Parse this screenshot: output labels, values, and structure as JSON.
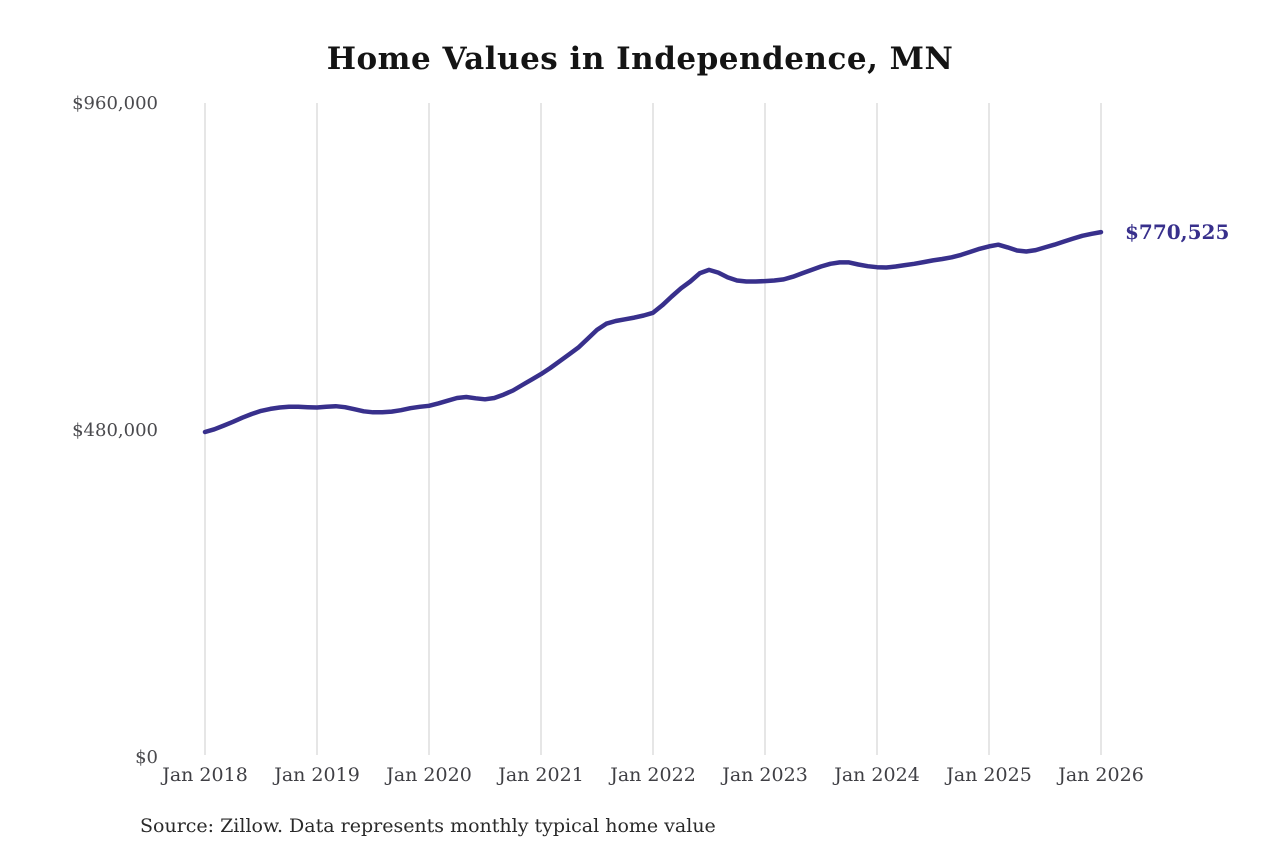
{
  "page": {
    "background_color": "#ffffff"
  },
  "chart_data": {
    "type": "line",
    "title": "Home Values in Independence, MN",
    "source_note": "Source: Zillow. Data represents monthly typical home value",
    "end_label": "$770,525",
    "latest_value": 770525,
    "x_start_month": "Jan 2018",
    "x_end_month": "Jan 2026",
    "x_tick_labels": [
      "Jan 2018",
      "Jan 2019",
      "Jan 2020",
      "Jan 2021",
      "Jan 2022",
      "Jan 2023",
      "Jan 2024",
      "Jan 2025",
      "Jan 2026"
    ],
    "y_ticks": [
      0,
      480000,
      960000
    ],
    "y_tick_labels": [
      "$0",
      "$480,000",
      "$960,000"
    ],
    "ylim": [
      0,
      960000
    ],
    "grid": "vertical-only",
    "legend": "none",
    "line_color": "#38308c",
    "label_color": "#38308c",
    "gridline_color": "#cccccc",
    "axis_text_color": "#3f3f44",
    "series": [
      {
        "name": "Monthly typical home value",
        "points_per_year": 12,
        "values_monthly": [
          477000,
          481000,
          486500,
          492000,
          498000,
          503500,
          508000,
          511000,
          513000,
          514000,
          514000,
          513500,
          513000,
          514000,
          515000,
          513500,
          510500,
          507500,
          506000,
          506000,
          507000,
          509000,
          512000,
          514000,
          515500,
          519000,
          523000,
          527000,
          528500,
          526500,
          525000,
          527000,
          532000,
          538000,
          546000,
          554000,
          562000,
          571000,
          581000,
          591000,
          601000,
          614000,
          627000,
          636000,
          640000,
          642500,
          645000,
          648000,
          652000,
          663000,
          676000,
          688000,
          698000,
          710000,
          715000,
          711000,
          704000,
          699500,
          698000,
          698000,
          698500,
          699500,
          701000,
          705000,
          710000,
          715000,
          720000,
          724000,
          726000,
          726000,
          723000,
          720500,
          719000,
          718500,
          720000,
          722000,
          724000,
          726500,
          729000,
          731000,
          733500,
          737000,
          741500,
          746000,
          749500,
          752000,
          748000,
          743500,
          742000,
          744000,
          748000,
          752000,
          756500,
          761000,
          765000,
          768000,
          770525
        ]
      }
    ]
  }
}
